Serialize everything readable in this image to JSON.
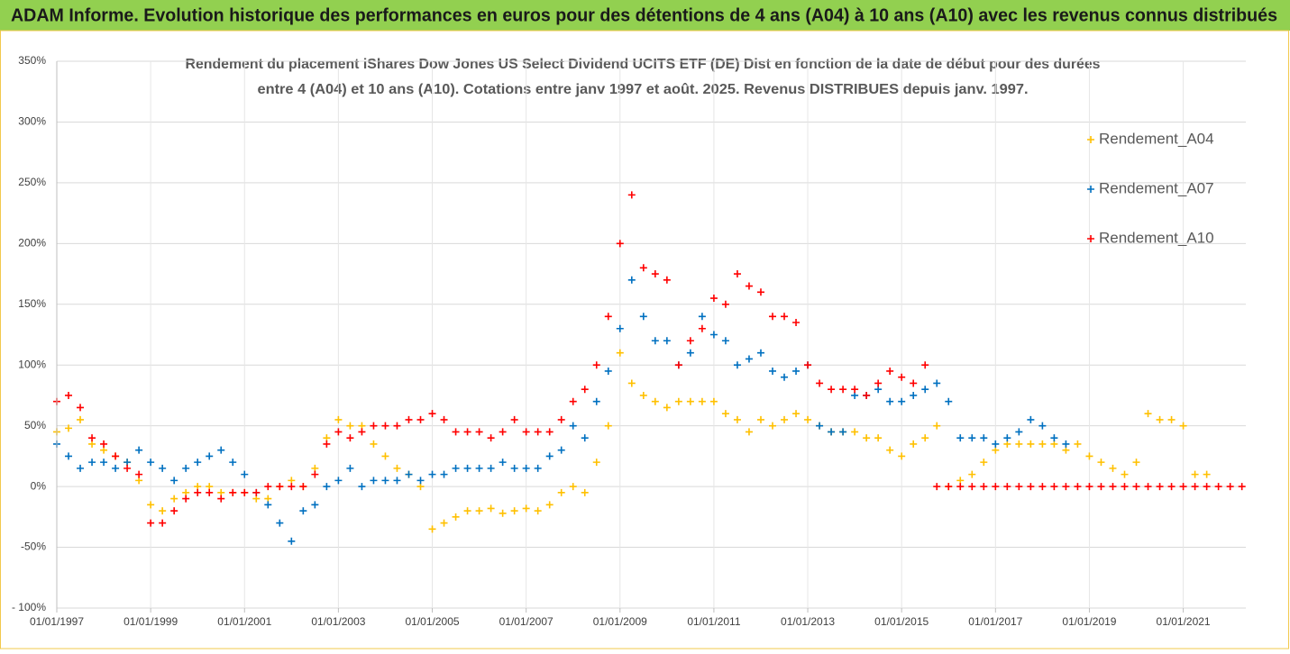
{
  "chart_data": {
    "type": "scatter",
    "title": "ADAM Informe. Evolution historique des performances en euros pour des détentions de 4 ans (A04) à 10 ans (A10) avec les revenus connus distribués",
    "subtitle": [
      "Rendement du placement iShares Dow Jones US Select Dividend UCITS ETF (DE) Dist en fonction de la date de début pour des durées",
      "entre 4 (A04) et 10 ans (A10). Cotations entre janv 1997 et août. 2025. Revenus DISTRIBUES depuis janv. 1997."
    ],
    "xlim": [
      "1997-01-01",
      "2022-05-01"
    ],
    "xticks": [
      {
        "value": "1997-01-01",
        "label": "01/01/1997"
      },
      {
        "value": "1999-01-01",
        "label": "01/01/1999"
      },
      {
        "value": "2001-01-01",
        "label": "01/01/2001"
      },
      {
        "value": "2003-01-01",
        "label": "01/01/2003"
      },
      {
        "value": "2005-01-01",
        "label": "01/01/2005"
      },
      {
        "value": "2007-01-01",
        "label": "01/01/2007"
      },
      {
        "value": "2009-01-01",
        "label": "01/01/2009"
      },
      {
        "value": "2011-01-01",
        "label": "01/01/2011"
      },
      {
        "value": "2013-01-01",
        "label": "01/01/2013"
      },
      {
        "value": "2015-01-01",
        "label": "01/01/2015"
      },
      {
        "value": "2017-01-01",
        "label": "01/01/2017"
      },
      {
        "value": "2019-01-01",
        "label": "01/01/2019"
      },
      {
        "value": "2021-01-01",
        "label": "01/01/2021"
      }
    ],
    "ylim": [
      -100,
      350
    ],
    "yticks": [
      {
        "value": -100,
        "label": "- 100%"
      },
      {
        "value": -50,
        "label": "-50%"
      },
      {
        "value": 0,
        "label": "0%"
      },
      {
        "value": 50,
        "label": "50%"
      },
      {
        "value": 100,
        "label": "100%"
      },
      {
        "value": 150,
        "label": "150%"
      },
      {
        "value": 200,
        "label": "200%"
      },
      {
        "value": 250,
        "label": "250%"
      },
      {
        "value": 300,
        "label": "300%"
      },
      {
        "value": 350,
        "label": "350%"
      }
    ],
    "grid": true,
    "legend": "upper-right",
    "series": [
      {
        "name": "Rendement_A04",
        "color": "#ffc000",
        "x": [
          "1997-01-01",
          "1997-04-01",
          "1997-07-01",
          "1997-10-01",
          "1998-01-01",
          "1998-04-01",
          "1998-07-01",
          "1998-10-01",
          "1999-01-01",
          "1999-04-01",
          "1999-07-01",
          "1999-10-01",
          "2000-01-01",
          "2000-04-01",
          "2000-07-01",
          "2000-10-01",
          "2001-01-01",
          "2001-04-01",
          "2001-07-01",
          "2001-10-01",
          "2002-01-01",
          "2002-04-01",
          "2002-07-01",
          "2002-10-01",
          "2003-01-01",
          "2003-04-01",
          "2003-07-01",
          "2003-10-01",
          "2004-01-01",
          "2004-04-01",
          "2004-07-01",
          "2004-10-01",
          "2005-01-01",
          "2005-04-01",
          "2005-07-01",
          "2005-10-01",
          "2006-01-01",
          "2006-04-01",
          "2006-07-01",
          "2006-10-01",
          "2007-01-01",
          "2007-04-01",
          "2007-07-01",
          "2007-10-01",
          "2008-01-01",
          "2008-04-01",
          "2008-07-01",
          "2008-10-01",
          "2009-01-01",
          "2009-04-01",
          "2009-07-01",
          "2009-10-01",
          "2010-01-01",
          "2010-04-01",
          "2010-07-01",
          "2010-10-01",
          "2011-01-01",
          "2011-04-01",
          "2011-07-01",
          "2011-10-01",
          "2012-01-01",
          "2012-04-01",
          "2012-07-01",
          "2012-10-01",
          "2013-01-01",
          "2013-04-01",
          "2013-07-01",
          "2013-10-01",
          "2014-01-01",
          "2014-04-01",
          "2014-07-01",
          "2014-10-01",
          "2015-01-01",
          "2015-04-01",
          "2015-07-01",
          "2015-10-01",
          "2016-01-01",
          "2016-04-01",
          "2016-07-01",
          "2016-10-01",
          "2017-01-01",
          "2017-04-01",
          "2017-07-01",
          "2017-10-01",
          "2018-01-01",
          "2018-04-01",
          "2018-07-01",
          "2018-10-01",
          "2019-01-01",
          "2019-04-01",
          "2019-07-01",
          "2019-10-01",
          "2020-01-01",
          "2020-04-01",
          "2020-07-01",
          "2020-10-01",
          "2021-01-01",
          "2021-04-01",
          "2021-07-01"
        ],
        "values": [
          45,
          48,
          55,
          35,
          30,
          25,
          20,
          5,
          -15,
          -20,
          -10,
          -5,
          0,
          0,
          -5,
          -5,
          -5,
          -10,
          -10,
          0,
          5,
          0,
          15,
          40,
          55,
          50,
          50,
          35,
          25,
          15,
          10,
          0,
          -35,
          -30,
          -25,
          -20,
          -20,
          -18,
          -22,
          -20,
          -18,
          -20,
          -15,
          -5,
          0,
          -5,
          20,
          50,
          110,
          85,
          75,
          70,
          65,
          70,
          70,
          70,
          70,
          60,
          55,
          45,
          55,
          50,
          55,
          60,
          55,
          50,
          45,
          45,
          45,
          40,
          40,
          30,
          25,
          35,
          40,
          50,
          0,
          5,
          10,
          20,
          30,
          35,
          35,
          35,
          35,
          35,
          30,
          35,
          25,
          20,
          15,
          10,
          20,
          60,
          55,
          55,
          50,
          10,
          10
        ]
      },
      {
        "name": "Rendement_A07",
        "color": "#0070c0",
        "x": [
          "1997-01-01",
          "1997-04-01",
          "1997-07-01",
          "1997-10-01",
          "1998-01-01",
          "1998-04-01",
          "1998-07-01",
          "1998-10-01",
          "1999-01-01",
          "1999-04-01",
          "1999-07-01",
          "1999-10-01",
          "2000-01-01",
          "2000-04-01",
          "2000-07-01",
          "2000-10-01",
          "2001-01-01",
          "2001-04-01",
          "2001-07-01",
          "2001-10-01",
          "2002-01-01",
          "2002-04-01",
          "2002-07-01",
          "2002-10-01",
          "2003-01-01",
          "2003-04-01",
          "2003-07-01",
          "2003-10-01",
          "2004-01-01",
          "2004-04-01",
          "2004-07-01",
          "2004-10-01",
          "2005-01-01",
          "2005-04-01",
          "2005-07-01",
          "2005-10-01",
          "2006-01-01",
          "2006-04-01",
          "2006-07-01",
          "2006-10-01",
          "2007-01-01",
          "2007-04-01",
          "2007-07-01",
          "2007-10-01",
          "2008-01-01",
          "2008-04-01",
          "2008-07-01",
          "2008-10-01",
          "2009-01-01",
          "2009-04-01",
          "2009-07-01",
          "2009-10-01",
          "2010-01-01",
          "2010-04-01",
          "2010-07-01",
          "2010-10-01",
          "2011-01-01",
          "2011-04-01",
          "2011-07-01",
          "2011-10-01",
          "2012-01-01",
          "2012-04-01",
          "2012-07-01",
          "2012-10-01",
          "2013-01-01",
          "2013-04-01",
          "2013-07-01",
          "2013-10-01",
          "2014-01-01",
          "2014-04-01",
          "2014-07-01",
          "2014-10-01",
          "2015-01-01",
          "2015-04-01",
          "2015-07-01",
          "2015-10-01",
          "2016-01-01",
          "2016-04-01",
          "2016-07-01",
          "2016-10-01",
          "2017-01-01",
          "2017-04-01",
          "2017-07-01",
          "2017-10-01",
          "2018-01-01",
          "2018-04-01",
          "2018-07-01"
        ],
        "values": [
          35,
          25,
          15,
          20,
          20,
          15,
          20,
          30,
          20,
          15,
          5,
          15,
          20,
          25,
          30,
          20,
          10,
          -5,
          -15,
          -30,
          -45,
          -20,
          -15,
          0,
          5,
          15,
          0,
          5,
          5,
          5,
          10,
          5,
          10,
          10,
          15,
          15,
          15,
          15,
          20,
          15,
          15,
          15,
          25,
          30,
          50,
          40,
          70,
          95,
          130,
          170,
          140,
          120,
          120,
          100,
          110,
          140,
          125,
          120,
          100,
          105,
          110,
          95,
          90,
          95,
          100,
          50,
          45,
          45,
          75,
          75,
          80,
          70,
          70,
          75,
          80,
          85,
          70,
          40,
          40,
          40,
          35,
          40,
          45,
          55,
          50,
          40,
          35
        ]
      },
      {
        "name": "Rendement_A10",
        "color": "#ff0000",
        "x": [
          "1997-01-01",
          "1997-04-01",
          "1997-07-01",
          "1997-10-01",
          "1998-01-01",
          "1998-04-01",
          "1998-07-01",
          "1998-10-01",
          "1999-01-01",
          "1999-04-01",
          "1999-07-01",
          "1999-10-01",
          "2000-01-01",
          "2000-04-01",
          "2000-07-01",
          "2000-10-01",
          "2001-01-01",
          "2001-04-01",
          "2001-07-01",
          "2001-10-01",
          "2002-01-01",
          "2002-04-01",
          "2002-07-01",
          "2002-10-01",
          "2003-01-01",
          "2003-04-01",
          "2003-07-01",
          "2003-10-01",
          "2004-01-01",
          "2004-04-01",
          "2004-07-01",
          "2004-10-01",
          "2005-01-01",
          "2005-04-01",
          "2005-07-01",
          "2005-10-01",
          "2006-01-01",
          "2006-04-01",
          "2006-07-01",
          "2006-10-01",
          "2007-01-01",
          "2007-04-01",
          "2007-07-01",
          "2007-10-01",
          "2008-01-01",
          "2008-04-01",
          "2008-07-01",
          "2008-10-01",
          "2009-01-01",
          "2009-04-01",
          "2009-07-01",
          "2009-10-01",
          "2010-01-01",
          "2010-04-01",
          "2010-07-01",
          "2010-10-01",
          "2011-01-01",
          "2011-04-01",
          "2011-07-01",
          "2011-10-01",
          "2012-01-01",
          "2012-04-01",
          "2012-07-01",
          "2012-10-01",
          "2013-01-01",
          "2013-04-01",
          "2013-07-01",
          "2013-10-01",
          "2014-01-01",
          "2014-04-01",
          "2014-07-01",
          "2014-10-01",
          "2015-01-01",
          "2015-04-01",
          "2015-07-01",
          "2015-10-01",
          "2016-01-01",
          "2016-04-01",
          "2016-07-01",
          "2016-10-01",
          "2017-01-01",
          "2017-04-01",
          "2017-07-01",
          "2017-10-01",
          "2018-01-01",
          "2018-04-01",
          "2018-07-01",
          "2018-10-01",
          "2019-01-01",
          "2019-04-01",
          "2019-07-01",
          "2019-10-01",
          "2020-01-01",
          "2020-04-01",
          "2020-07-01",
          "2020-10-01",
          "2021-01-01",
          "2021-04-01",
          "2021-07-01",
          "2021-10-01",
          "2022-01-01",
          "2022-04-01"
        ],
        "values": [
          70,
          75,
          65,
          40,
          35,
          25,
          15,
          10,
          -30,
          -30,
          -20,
          -10,
          -5,
          -5,
          -10,
          -5,
          -5,
          -5,
          0,
          0,
          0,
          0,
          10,
          35,
          45,
          40,
          45,
          50,
          50,
          50,
          55,
          55,
          60,
          55,
          45,
          45,
          45,
          40,
          45,
          55,
          45,
          45,
          45,
          55,
          70,
          80,
          100,
          140,
          200,
          240,
          180,
          175,
          170,
          100,
          120,
          130,
          155,
          150,
          175,
          165,
          160,
          140,
          140,
          135,
          100,
          85,
          80,
          80,
          80,
          75,
          85,
          95,
          90,
          85,
          100,
          0,
          0,
          0,
          0,
          0,
          0,
          0,
          0,
          0,
          0,
          0,
          0,
          0,
          0,
          0,
          0,
          0,
          0,
          0,
          0,
          0,
          0,
          0,
          0,
          0,
          0,
          0
        ]
      }
    ]
  }
}
